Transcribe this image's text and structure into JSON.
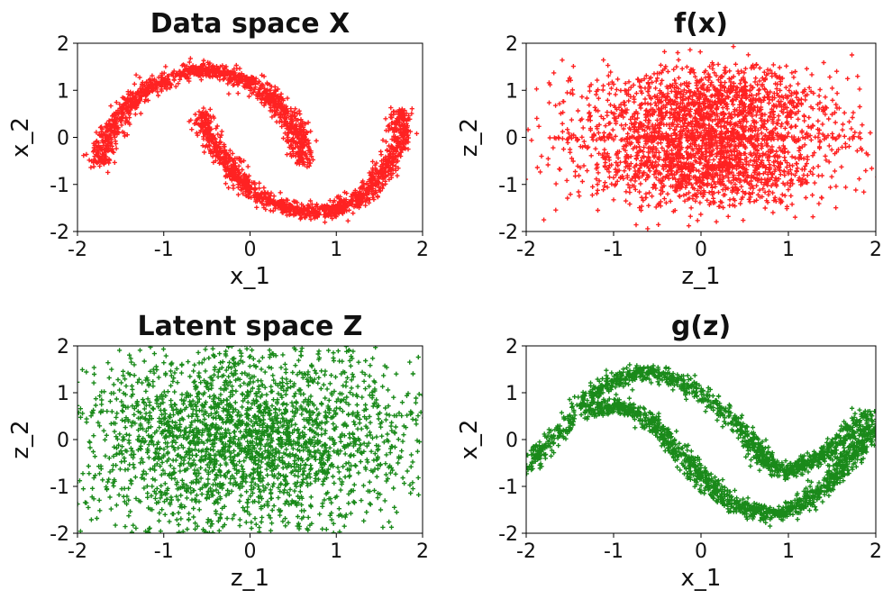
{
  "figure": {
    "panel_colors": {
      "red": "#ff2222",
      "green": "#1a8a1a"
    }
  },
  "chart_data": [
    {
      "id": "data-space-x",
      "type": "scatter",
      "title": "Data space X",
      "xlabel": "x_1",
      "ylabel": "x_2",
      "xlim": [
        -2,
        2
      ],
      "ylim": [
        -2,
        2
      ],
      "xticks": [
        "-2",
        "-1",
        "0",
        "1",
        "2"
      ],
      "yticks": [
        "-2",
        "-1",
        "0",
        "1",
        "2"
      ],
      "marker": "+",
      "color": "#ff2222",
      "distribution": "two interleaving moons",
      "series": [
        {
          "shape": "upper-moon",
          "points": [
            [
              -1.75,
              -0.55
            ],
            [
              -1.7,
              -0.2
            ],
            [
              -1.6,
              0.2
            ],
            [
              -1.45,
              0.6
            ],
            [
              -1.25,
              0.95
            ],
            [
              -1.0,
              1.2
            ],
            [
              -0.75,
              1.38
            ],
            [
              -0.5,
              1.45
            ],
            [
              -0.25,
              1.35
            ],
            [
              0.0,
              1.15
            ],
            [
              0.2,
              0.9
            ],
            [
              0.38,
              0.6
            ],
            [
              0.5,
              0.25
            ],
            [
              0.6,
              -0.1
            ],
            [
              0.6,
              -0.55
            ]
          ]
        },
        {
          "shape": "lower-moon",
          "points": [
            [
              -0.55,
              0.5
            ],
            [
              -0.5,
              0.1
            ],
            [
              -0.35,
              -0.35
            ],
            [
              -0.15,
              -0.85
            ],
            [
              0.1,
              -1.25
            ],
            [
              0.4,
              -1.5
            ],
            [
              0.75,
              -1.6
            ],
            [
              1.05,
              -1.5
            ],
            [
              1.3,
              -1.25
            ],
            [
              1.5,
              -0.85
            ],
            [
              1.65,
              -0.4
            ],
            [
              1.75,
              0.1
            ],
            [
              1.75,
              0.55
            ]
          ]
        }
      ]
    },
    {
      "id": "f-of-x",
      "type": "scatter",
      "title": "f(x)",
      "xlabel": "z_1",
      "ylabel": "z_2",
      "xlim": [
        -2,
        2
      ],
      "ylim": [
        -2,
        2
      ],
      "xticks": [
        "-2",
        "-1",
        "0",
        "1",
        "2"
      ],
      "yticks": [
        "-2",
        "-1",
        "0",
        "1",
        "2"
      ],
      "marker": "+",
      "color": "#ff2222",
      "distribution": "two horizontal bands separated by a gap near z_2 = 0",
      "series": [
        {
          "shape": "upper-band",
          "center": [
            0.1,
            0.6
          ],
          "spread": [
            0.55,
            0.45
          ]
        },
        {
          "shape": "lower-band",
          "center": [
            0.1,
            -0.6
          ],
          "spread": [
            0.55,
            0.45
          ]
        },
        {
          "shape": "center-line",
          "center": [
            0.0,
            0.0
          ],
          "spread": [
            0.9,
            0.03
          ]
        }
      ]
    },
    {
      "id": "latent-space-z",
      "type": "scatter",
      "title": "Latent space Z",
      "xlabel": "z_1",
      "ylabel": "z_2",
      "xlim": [
        -2,
        2
      ],
      "ylim": [
        -2,
        2
      ],
      "xticks": [
        "-2",
        "-1",
        "0",
        "1",
        "2"
      ],
      "yticks": [
        "-2",
        "-1",
        "0",
        "1",
        "2"
      ],
      "marker": "+",
      "color": "#1a8a1a",
      "distribution": "isotropic standard normal",
      "series": [
        {
          "shape": "gaussian",
          "center": [
            0,
            0
          ],
          "spread": [
            1.0,
            1.0
          ]
        }
      ]
    },
    {
      "id": "g-of-z",
      "type": "scatter",
      "title": "g(z)",
      "xlabel": "x_1",
      "ylabel": "x_2",
      "xlim": [
        -2,
        2
      ],
      "ylim": [
        -2,
        2
      ],
      "xticks": [
        "-2",
        "-1",
        "0",
        "1",
        "2"
      ],
      "yticks": [
        "-2",
        "-1",
        "0",
        "1",
        "2"
      ],
      "marker": "+",
      "color": "#1a8a1a",
      "distribution": "two wave-shaped moon reconstructions",
      "series": [
        {
          "shape": "upper-wave",
          "points": [
            [
              -2.0,
              -0.6
            ],
            [
              -1.8,
              -0.2
            ],
            [
              -1.5,
              0.45
            ],
            [
              -1.2,
              1.05
            ],
            [
              -0.9,
              1.35
            ],
            [
              -0.6,
              1.45
            ],
            [
              -0.3,
              1.3
            ],
            [
              0.0,
              0.95
            ],
            [
              0.3,
              0.5
            ],
            [
              0.55,
              0.0
            ],
            [
              0.75,
              -0.45
            ],
            [
              0.95,
              -0.7
            ],
            [
              1.2,
              -0.55
            ],
            [
              1.45,
              -0.25
            ],
            [
              1.7,
              0.15
            ],
            [
              1.95,
              0.6
            ]
          ]
        },
        {
          "shape": "lower-wave",
          "points": [
            [
              -1.3,
              0.6
            ],
            [
              -1.0,
              0.75
            ],
            [
              -0.75,
              0.6
            ],
            [
              -0.45,
              0.15
            ],
            [
              -0.2,
              -0.4
            ],
            [
              0.05,
              -0.9
            ],
            [
              0.3,
              -1.3
            ],
            [
              0.6,
              -1.55
            ],
            [
              0.9,
              -1.6
            ],
            [
              1.2,
              -1.35
            ],
            [
              1.45,
              -0.95
            ],
            [
              1.65,
              -0.5
            ],
            [
              1.85,
              -0.1
            ],
            [
              2.0,
              0.3
            ]
          ]
        }
      ]
    }
  ]
}
